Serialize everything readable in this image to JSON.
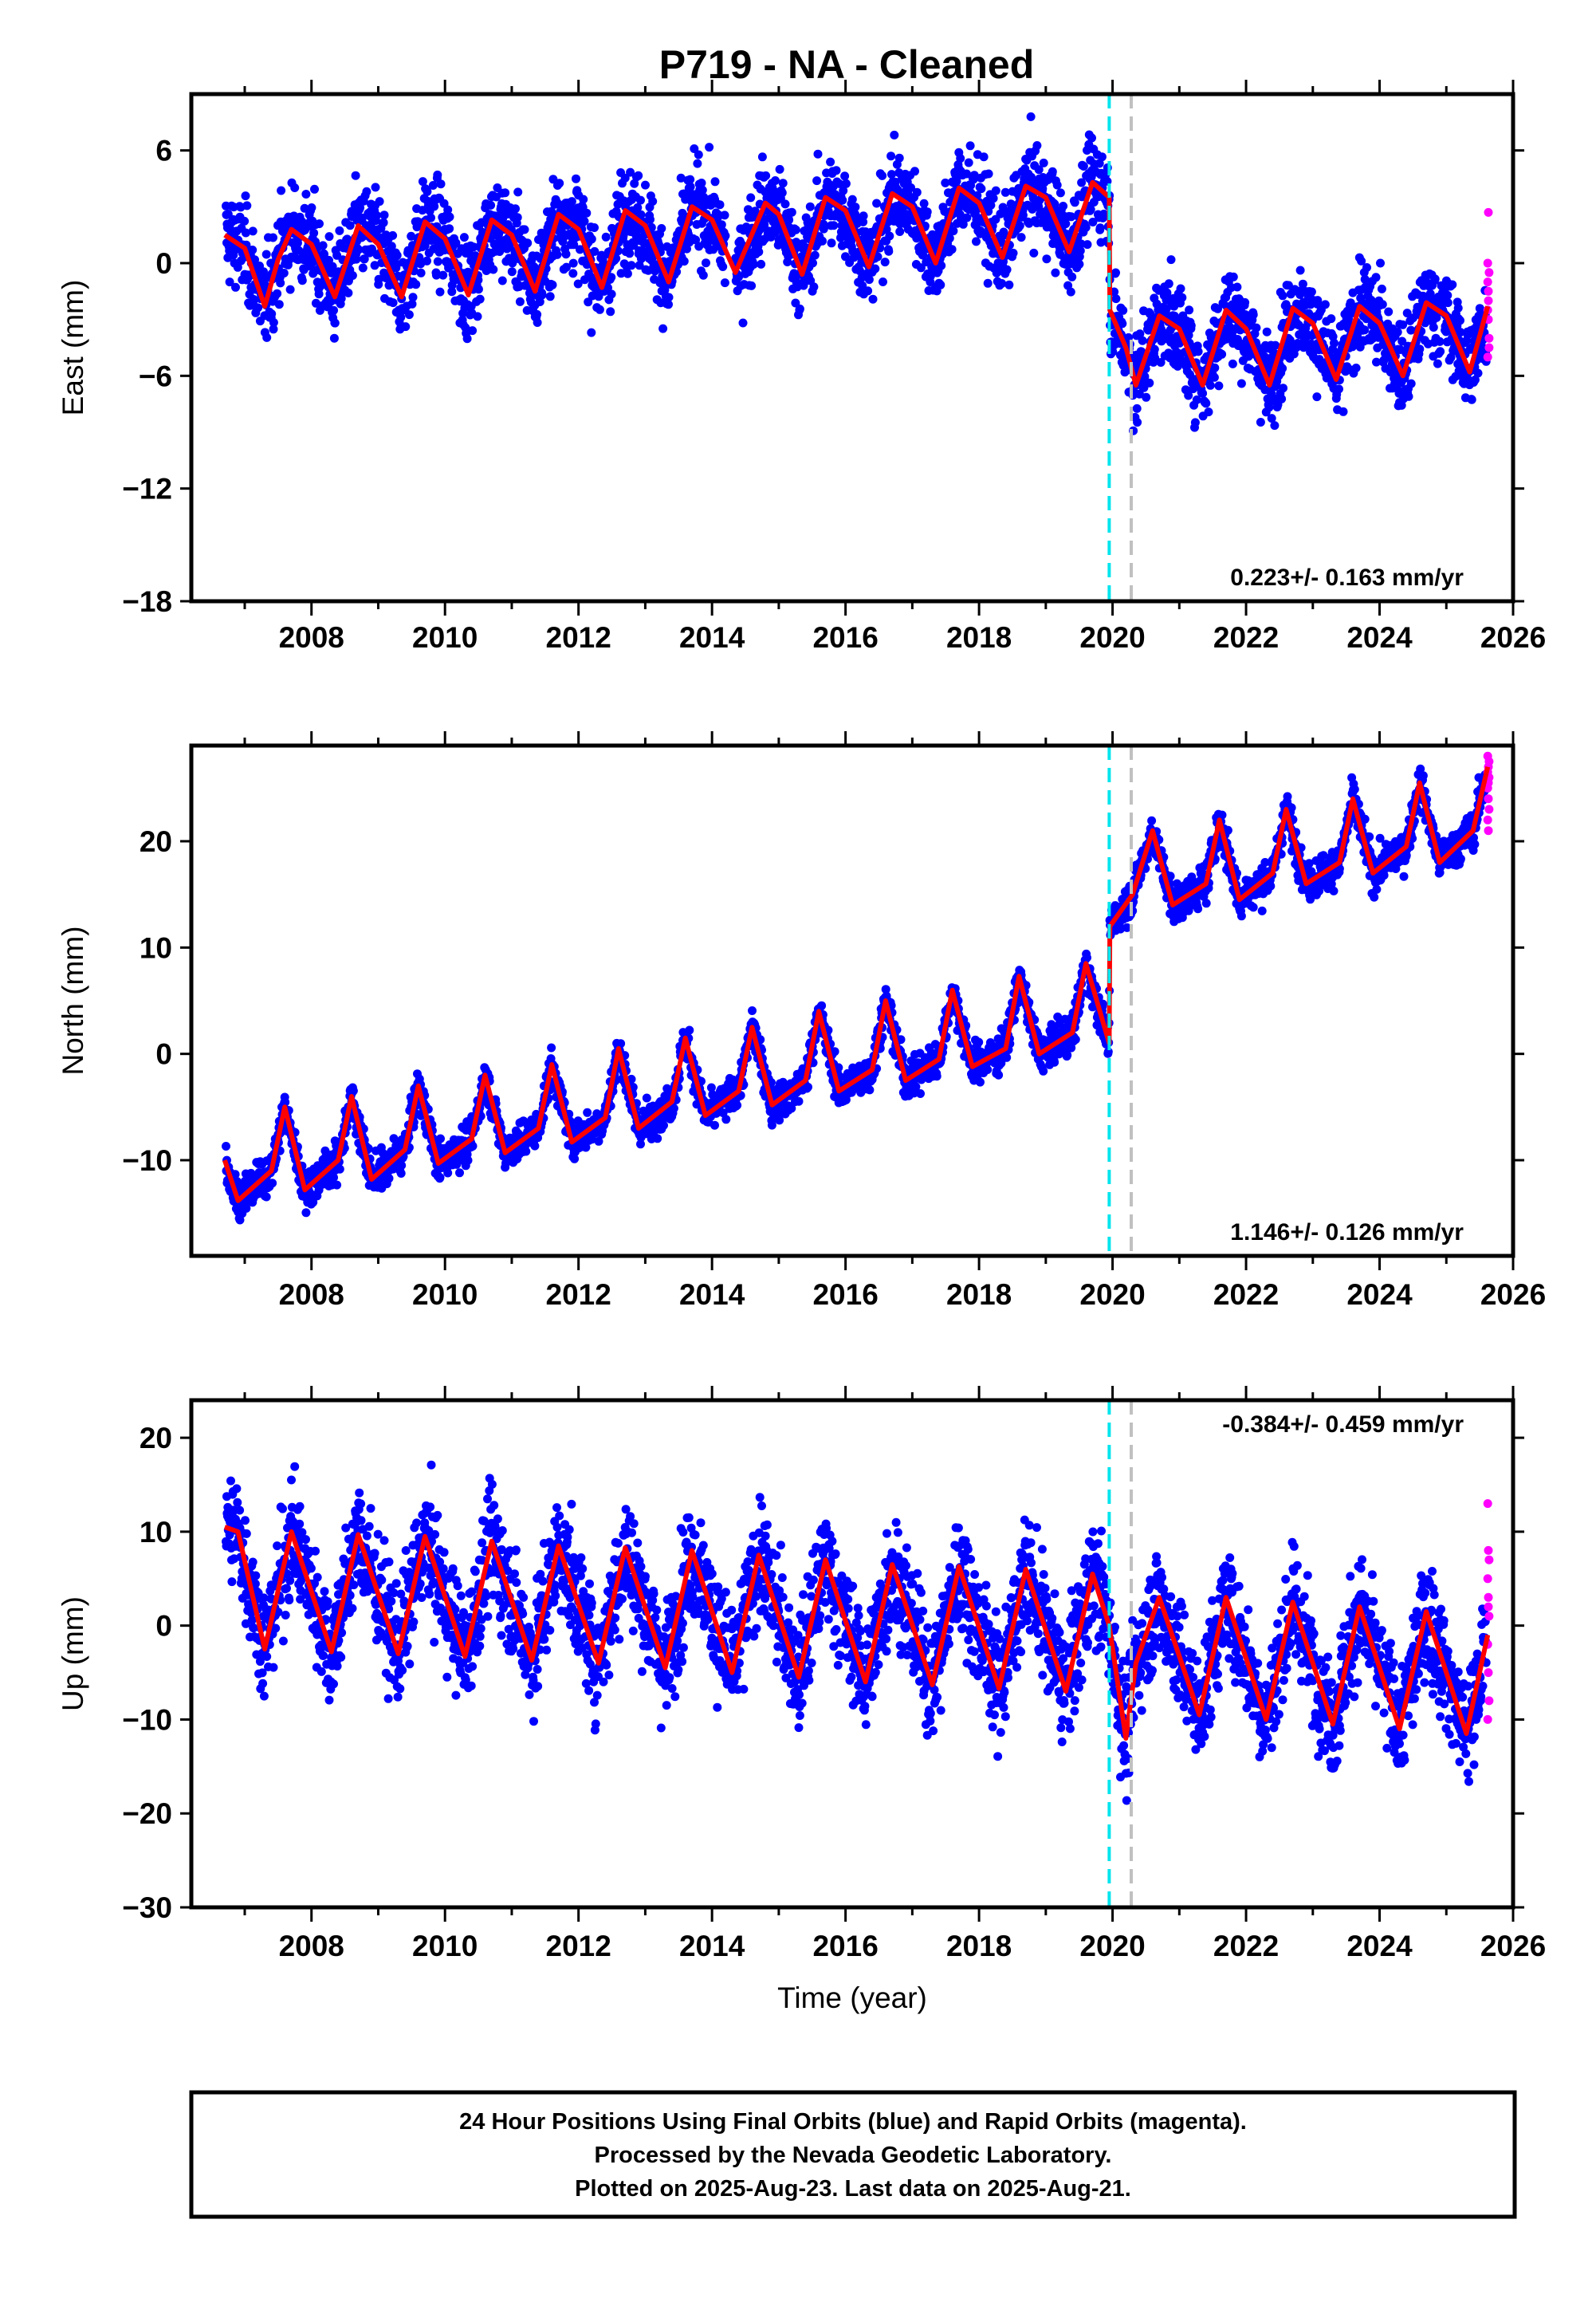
{
  "title": "P719  - NA - Cleaned",
  "colors": {
    "final_orbits": "#0000ff",
    "rapid_orbits": "#ff00ff",
    "model": "#ff0000",
    "marker_cyan": "#00e5ee",
    "marker_gray": "#c0c0c0"
  },
  "xaxis": {
    "label": "Time (year)",
    "ticks": [
      2008,
      2010,
      2012,
      2014,
      2016,
      2018,
      2020,
      2022,
      2024,
      2026
    ],
    "range": [
      2006.2,
      2026.0
    ]
  },
  "markers": [
    {
      "kind": "cyan-dashed",
      "year": 2019.95
    },
    {
      "kind": "gray-dashed",
      "year": 2020.28
    }
  ],
  "caption": [
    "24 Hour Positions Using Final Orbits (blue) and Rapid Orbits (magenta).",
    "Processed by the Nevada Geodetic Laboratory.",
    "Plotted on 2025-Aug-23. Last data on 2025-Aug-21."
  ],
  "chart_data": [
    {
      "type": "scatter",
      "component": "East",
      "ylabel": "East (mm)",
      "ylim": [
        -18,
        9
      ],
      "yticks": [
        -18,
        -12,
        -6,
        0,
        6
      ],
      "rate_text": "0.223+/- 0.163 mm/yr",
      "rate_position": "bottom-right",
      "series": [
        {
          "name": "model",
          "x": [
            2006.7,
            2007.0,
            2007.3,
            2007.5,
            2007.7,
            2008.0,
            2008.35,
            2008.7,
            2009.0,
            2009.35,
            2009.7,
            2010.0,
            2010.35,
            2010.7,
            2011.0,
            2011.35,
            2011.7,
            2012.0,
            2012.35,
            2012.7,
            2013.0,
            2013.35,
            2013.7,
            2014.0,
            2014.35,
            2014.8,
            2015.0,
            2015.35,
            2015.7,
            2016.0,
            2016.35,
            2016.7,
            2017.0,
            2017.35,
            2017.7,
            2018.0,
            2018.35,
            2018.7,
            2019.0,
            2019.35,
            2019.7,
            2019.95,
            2019.96,
            2020.2,
            2020.35,
            2020.7,
            2021.0,
            2021.35,
            2021.7,
            2022.0,
            2022.35,
            2022.7,
            2023.0,
            2023.35,
            2023.7,
            2024.0,
            2024.35,
            2024.7,
            2025.0,
            2025.35,
            2025.62
          ],
          "values": [
            1.5,
            0.8,
            -2.3,
            0.2,
            1.8,
            1.0,
            -1.8,
            2.0,
            1.0,
            -1.8,
            2.2,
            1.3,
            -1.7,
            2.3,
            1.5,
            -1.5,
            2.6,
            1.8,
            -1.3,
            2.8,
            2.0,
            -1.0,
            3.0,
            2.3,
            -0.5,
            3.2,
            2.6,
            -0.6,
            3.5,
            2.8,
            -0.2,
            3.7,
            3.0,
            0.0,
            4.0,
            3.2,
            0.3,
            4.1,
            3.5,
            0.6,
            4.3,
            3.5,
            -2.5,
            -4.5,
            -6.5,
            -2.8,
            -3.5,
            -6.5,
            -2.5,
            -3.5,
            -6.5,
            -2.4,
            -3.2,
            -6.2,
            -2.3,
            -3.2,
            -6.0,
            -2.1,
            -2.8,
            -5.8,
            -2.3
          ]
        }
      ],
      "scatter_spread": 2.2,
      "rapid_points": [
        -2.5,
        -1.5,
        -0.5,
        0.0,
        -3.0,
        -4.0,
        -5.0,
        2.7,
        -4.5,
        -1.0,
        -2.0
      ]
    },
    {
      "type": "scatter",
      "component": "North",
      "ylabel": "North (mm)",
      "ylim": [
        -19,
        29
      ],
      "yticks": [
        -10,
        0,
        10,
        20
      ],
      "rate_text": "1.146+/- 0.126 mm/yr",
      "rate_position": "bottom-right",
      "series": [
        {
          "name": "model",
          "x": [
            2006.7,
            2006.9,
            2007.4,
            2007.6,
            2007.9,
            2008.4,
            2008.6,
            2008.9,
            2009.4,
            2009.6,
            2009.9,
            2010.4,
            2010.6,
            2010.9,
            2011.4,
            2011.6,
            2011.9,
            2012.4,
            2012.6,
            2012.9,
            2013.4,
            2013.6,
            2013.9,
            2014.4,
            2014.6,
            2014.9,
            2015.4,
            2015.6,
            2015.9,
            2016.4,
            2016.6,
            2016.9,
            2017.4,
            2017.6,
            2017.9,
            2018.4,
            2018.6,
            2018.9,
            2019.4,
            2019.6,
            2019.95,
            2019.96,
            2020.3,
            2020.6,
            2020.9,
            2021.4,
            2021.6,
            2021.9,
            2022.4,
            2022.6,
            2022.9,
            2023.4,
            2023.6,
            2023.9,
            2024.4,
            2024.6,
            2024.9,
            2025.4,
            2025.62
          ],
          "values": [
            -10,
            -13.8,
            -11,
            -5,
            -12.8,
            -10,
            -4,
            -11.8,
            -9,
            -3,
            -10.3,
            -8,
            -2,
            -9.3,
            -7,
            -1,
            -8.3,
            -6,
            0.5,
            -7,
            -4.5,
            1.5,
            -5.8,
            -3.5,
            2.5,
            -4.8,
            -2.5,
            4,
            -3.5,
            -1.5,
            5,
            -2.5,
            -0.5,
            6,
            -1.2,
            0.5,
            7.3,
            0,
            2,
            8.5,
            1,
            12,
            15,
            21,
            14,
            16,
            22,
            14.5,
            17,
            23,
            16,
            18,
            24,
            17,
            19.5,
            25.5,
            18,
            21,
            27
          ]
        }
      ],
      "scatter_spread": 1.6,
      "rapid_points": [
        28,
        27,
        26,
        25,
        24,
        23,
        22,
        21,
        27.5,
        26.5,
        25.5
      ]
    },
    {
      "type": "scatter",
      "component": "Up",
      "ylabel": "Up (mm)",
      "ylim": [
        -30,
        24
      ],
      "yticks": [
        -30,
        -20,
        -10,
        0,
        10,
        20
      ],
      "rate_text": "-0.384+/- 0.459 mm/yr",
      "rate_position": "top-right",
      "series": [
        {
          "name": "model",
          "x": [
            2006.7,
            2006.9,
            2007.3,
            2007.7,
            2008.3,
            2008.7,
            2009.3,
            2009.7,
            2010.3,
            2010.7,
            2011.3,
            2011.7,
            2012.3,
            2012.7,
            2013.3,
            2013.7,
            2014.3,
            2014.7,
            2015.3,
            2015.7,
            2016.3,
            2016.7,
            2017.3,
            2017.7,
            2018.3,
            2018.7,
            2019.3,
            2019.7,
            2019.95,
            2020.2,
            2020.35,
            2020.7,
            2021.3,
            2021.7,
            2022.3,
            2022.7,
            2023.3,
            2023.7,
            2024.3,
            2024.7,
            2025.3,
            2025.62
          ],
          "values": [
            10.5,
            10,
            -2.5,
            10,
            -2.8,
            9.7,
            -3,
            9.5,
            -3.3,
            9,
            -3.7,
            8.5,
            -4,
            8.3,
            -4.5,
            8,
            -5,
            7.5,
            -5.5,
            7,
            -6,
            6.5,
            -6.3,
            6.3,
            -6.7,
            6,
            -7,
            5.5,
            0,
            -12,
            -4,
            3,
            -9.5,
            3,
            -10,
            2.5,
            -10.5,
            2,
            -11,
            1.5,
            -11.5,
            -1
          ]
        }
      ],
      "scatter_spread": 5.5,
      "rapid_points": [
        13,
        8,
        7,
        5,
        3,
        1,
        -2,
        -5,
        -8,
        -10,
        2
      ]
    }
  ]
}
